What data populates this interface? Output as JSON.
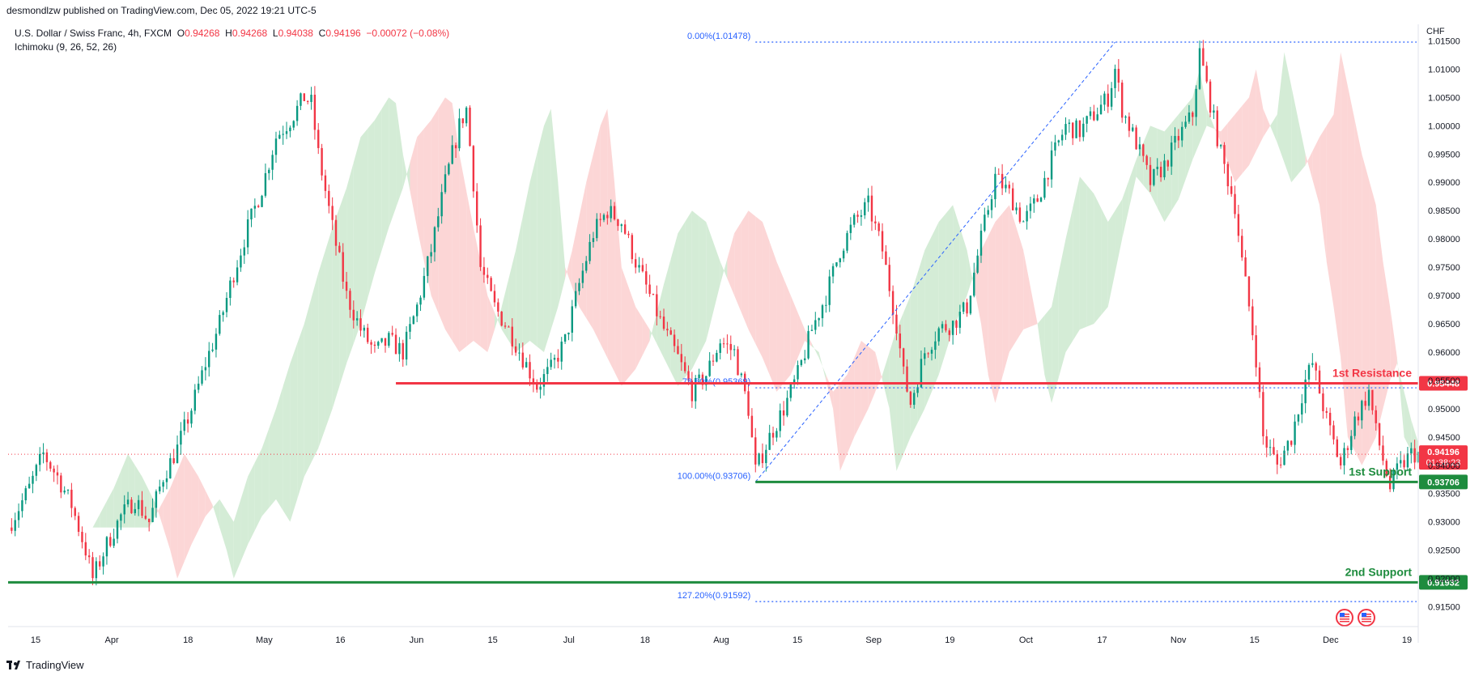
{
  "header": {
    "publisher": "desmondlzw published on TradingView.com, Dec 05, 2022 19:21 UTC-5",
    "symbol": "U.S. Dollar / Swiss Franc, 4h, FXCM",
    "o_label": "O",
    "o_value": "0.94268",
    "h_label": "H",
    "h_value": "0.94268",
    "l_label": "L",
    "l_value": "0.94038",
    "c_label": "C",
    "c_value": "0.94196",
    "change": "−0.00072 (−0.08%)",
    "indicator": "Ichimoku (9, 26, 52, 26)"
  },
  "footer": {
    "brand": "TradingView"
  },
  "colors": {
    "up": "#089981",
    "down": "#f23645",
    "resistance": "#f23645",
    "support": "#1e8c3e",
    "fib": "#2962ff",
    "cloud_bull": "#cfead2",
    "cloud_bear": "#fcd2d2",
    "text": "#131722",
    "axis_text": "#131722"
  },
  "chart_data": {
    "type": "candlestick",
    "title": "U.S. Dollar / Swiss Franc, 4h, FXCM",
    "currency": "CHF",
    "ylim": [
      0.9115,
      1.0165
    ],
    "y_ticks": [
      "1.01500",
      "1.01000",
      "1.00500",
      "1.00000",
      "0.99500",
      "0.99000",
      "0.98500",
      "0.98000",
      "0.97500",
      "0.97000",
      "0.96500",
      "0.96000",
      "0.95500",
      "0.95000",
      "0.94500",
      "0.94000",
      "0.93500",
      "0.93000",
      "0.92500",
      "0.92000",
      "0.91500"
    ],
    "x_ticks": [
      "15",
      "Apr",
      "18",
      "May",
      "16",
      "Jun",
      "15",
      "Jul",
      "18",
      "Aug",
      "15",
      "Sep",
      "19",
      "Oct",
      "17",
      "Nov",
      "15",
      "Dec",
      "19"
    ],
    "price_path": [
      [
        0,
        0.929
      ],
      [
        3,
        0.936
      ],
      [
        5,
        0.942
      ],
      [
        7,
        0.938
      ],
      [
        9,
        0.933
      ],
      [
        11,
        0.925
      ],
      [
        12,
        0.92
      ],
      [
        14,
        0.926
      ],
      [
        16,
        0.931
      ],
      [
        18,
        0.934
      ],
      [
        20,
        0.93
      ],
      [
        22,
        0.938
      ],
      [
        24,
        0.943
      ],
      [
        26,
        0.95
      ],
      [
        28,
        0.958
      ],
      [
        30,
        0.965
      ],
      [
        32,
        0.974
      ],
      [
        34,
        0.982
      ],
      [
        36,
        0.989
      ],
      [
        38,
        0.998
      ],
      [
        40,
        1.001
      ],
      [
        42,
        1.005
      ],
      [
        43,
        1.004
      ],
      [
        44,
        0.995
      ],
      [
        46,
        0.982
      ],
      [
        48,
        0.97
      ],
      [
        50,
        0.964
      ],
      [
        52,
        0.96
      ],
      [
        54,
        0.962
      ],
      [
        56,
        0.96
      ],
      [
        58,
        0.968
      ],
      [
        60,
        0.978
      ],
      [
        62,
        0.99
      ],
      [
        64,
        1.0
      ],
      [
        65,
        1.003
      ],
      [
        66,
        0.99
      ],
      [
        67,
        0.975
      ],
      [
        69,
        0.968
      ],
      [
        71,
        0.964
      ],
      [
        73,
        0.959
      ],
      [
        75,
        0.954
      ],
      [
        77,
        0.957
      ],
      [
        79,
        0.962
      ],
      [
        81,
        0.972
      ],
      [
        83,
        0.981
      ],
      [
        85,
        0.985
      ],
      [
        87,
        0.983
      ],
      [
        89,
        0.976
      ],
      [
        91,
        0.97
      ],
      [
        93,
        0.964
      ],
      [
        95,
        0.959
      ],
      [
        97,
        0.953
      ],
      [
        99,
        0.956
      ],
      [
        101,
        0.962
      ],
      [
        103,
        0.96
      ],
      [
        105,
        0.95
      ],
      [
        106,
        0.939
      ],
      [
        108,
        0.945
      ],
      [
        110,
        0.95
      ],
      [
        112,
        0.956
      ],
      [
        114,
        0.964
      ],
      [
        116,
        0.97
      ],
      [
        118,
        0.978
      ],
      [
        120,
        0.983
      ],
      [
        122,
        0.986
      ],
      [
        124,
        0.978
      ],
      [
        126,
        0.965
      ],
      [
        127,
        0.956
      ],
      [
        128,
        0.951
      ],
      [
        130,
        0.96
      ],
      [
        132,
        0.964
      ],
      [
        134,
        0.965
      ],
      [
        136,
        0.968
      ],
      [
        138,
        0.98
      ],
      [
        140,
        0.991
      ],
      [
        142,
        0.988
      ],
      [
        144,
        0.983
      ],
      [
        146,
        0.987
      ],
      [
        148,
        0.994
      ],
      [
        150,
        1.0
      ],
      [
        152,
        0.999
      ],
      [
        154,
        1.002
      ],
      [
        156,
        1.005
      ],
      [
        157,
        1.01
      ],
      [
        158,
        1.003
      ],
      [
        160,
        0.997
      ],
      [
        162,
        0.99
      ],
      [
        164,
        0.993
      ],
      [
        166,
        0.998
      ],
      [
        168,
        1.002
      ],
      [
        169,
        1.013
      ],
      [
        170,
        1.007
      ],
      [
        172,
        0.995
      ],
      [
        174,
        0.986
      ],
      [
        175,
        0.976
      ],
      [
        176,
        0.968
      ],
      [
        177,
        0.959
      ],
      [
        178,
        0.945
      ],
      [
        180,
        0.94
      ],
      [
        182,
        0.945
      ],
      [
        184,
        0.955
      ],
      [
        185,
        0.958
      ],
      [
        187,
        0.948
      ],
      [
        189,
        0.94
      ],
      [
        191,
        0.948
      ],
      [
        193,
        0.953
      ],
      [
        194,
        0.946
      ],
      [
        196,
        0.936
      ],
      [
        197,
        0.939
      ],
      [
        199,
        0.942
      ],
      [
        200,
        0.942
      ]
    ],
    "last_price": 0.94196,
    "last_price_label": "0.94196",
    "countdown": "01:38:23",
    "levels": [
      {
        "name": "1st Resistance",
        "price": 0.95448,
        "label": "0.95448",
        "start_index": 55,
        "color_key": "resistance"
      },
      {
        "name": "1st Support",
        "price": 0.93706,
        "label": "0.93706",
        "start_index": 106,
        "color_key": "support"
      },
      {
        "name": "2nd Support",
        "price": 0.91932,
        "label": "0.91932",
        "start_index": 0,
        "color_key": "support"
      }
    ],
    "fibonacci": [
      {
        "label": "0.00%(1.01478)",
        "price": 1.01478
      },
      {
        "label": "78.60%(0.95369)",
        "price": 0.95369
      },
      {
        "label": "100.00%(0.93706)",
        "price": 0.93706
      },
      {
        "label": "127.20%(0.91592)",
        "price": 0.91592
      }
    ],
    "fib_start_index": 106,
    "fib_trend": {
      "from_index": 106,
      "from_price": 0.93706,
      "to_index": 157,
      "to_price": 1.01478
    },
    "event_icons": 2
  }
}
